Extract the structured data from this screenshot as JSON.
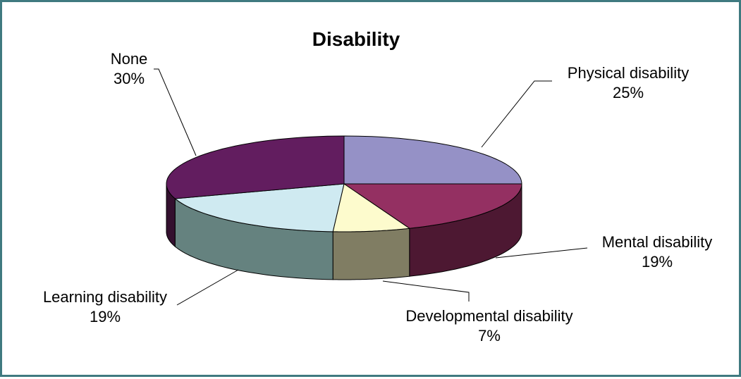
{
  "chart_data": {
    "type": "pie",
    "title": "Disability",
    "style": "3d",
    "slices": [
      {
        "label": "Physical disability",
        "value": 25,
        "value_label": "25%",
        "color": "#9591c6",
        "side_color": "#5a587a"
      },
      {
        "label": "Mental disability",
        "value": 19,
        "value_label": "19%",
        "color": "#943062",
        "side_color": "#4d1832"
      },
      {
        "label": "Developmental disability",
        "value": 7,
        "value_label": "7%",
        "color": "#fdfbcd",
        "side_color": "#807d63"
      },
      {
        "label": "Learning disability",
        "value": 19,
        "value_label": "19%",
        "color": "#cfeaf1",
        "side_color": "#65827f"
      },
      {
        "label": "None",
        "value": 30,
        "value_label": "30%",
        "color": "#621d5f",
        "side_color": "#34102f"
      }
    ]
  }
}
